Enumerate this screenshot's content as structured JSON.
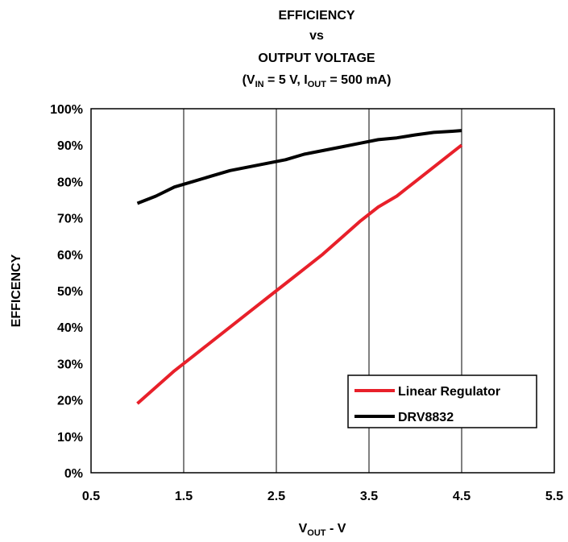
{
  "chart_data": {
    "type": "line",
    "title_lines": [
      "EFFICIENCY",
      "vs",
      "OUTPUT VOLTAGE"
    ],
    "subtitle": {
      "open": "(V",
      "sub1": "IN",
      "mid": " = 5 V, I",
      "sub2": "OUT",
      "close": " = 500 mA)"
    },
    "ylabel": "EFFICENCY",
    "xlabel": {
      "main": "V",
      "sub": "OUT",
      "rest": " - V"
    },
    "xlim": [
      0.5,
      5.5
    ],
    "ylim": [
      0,
      100
    ],
    "xticks": [
      0.5,
      1.5,
      2.5,
      3.5,
      4.5,
      5.5
    ],
    "xtick_labels": [
      "0.5",
      "1.5",
      "2.5",
      "3.5",
      "4.5",
      "5.5"
    ],
    "yticks": [
      0,
      10,
      20,
      30,
      40,
      50,
      60,
      70,
      80,
      90,
      100
    ],
    "ytick_labels": [
      "0%",
      "10%",
      "20%",
      "30%",
      "40%",
      "50%",
      "60%",
      "70%",
      "80%",
      "90%",
      "100%"
    ],
    "grid": "vertical",
    "legend_position": "bottom-right",
    "series": [
      {
        "name": "Linear Regulator",
        "color": "#e8202a",
        "x": [
          1.0,
          1.2,
          1.4,
          1.6,
          1.8,
          2.0,
          2.2,
          2.4,
          2.6,
          2.8,
          3.0,
          3.2,
          3.4,
          3.6,
          3.8,
          4.0,
          4.2,
          4.4,
          4.5
        ],
        "y": [
          19,
          23.5,
          28,
          32,
          36,
          40,
          44,
          48,
          52,
          56,
          60,
          64.5,
          69,
          73,
          76,
          80,
          84,
          88,
          90
        ]
      },
      {
        "name": "DRV8832",
        "color": "#000000",
        "x": [
          1.0,
          1.2,
          1.4,
          1.6,
          1.8,
          2.0,
          2.2,
          2.4,
          2.6,
          2.8,
          3.0,
          3.2,
          3.4,
          3.6,
          3.8,
          4.0,
          4.2,
          4.4,
          4.5
        ],
        "y": [
          74,
          76,
          78.5,
          80,
          81.5,
          83,
          84,
          85,
          86,
          87.5,
          88.5,
          89.5,
          90.5,
          91.5,
          92,
          92.8,
          93.5,
          93.8,
          94
        ]
      }
    ]
  }
}
